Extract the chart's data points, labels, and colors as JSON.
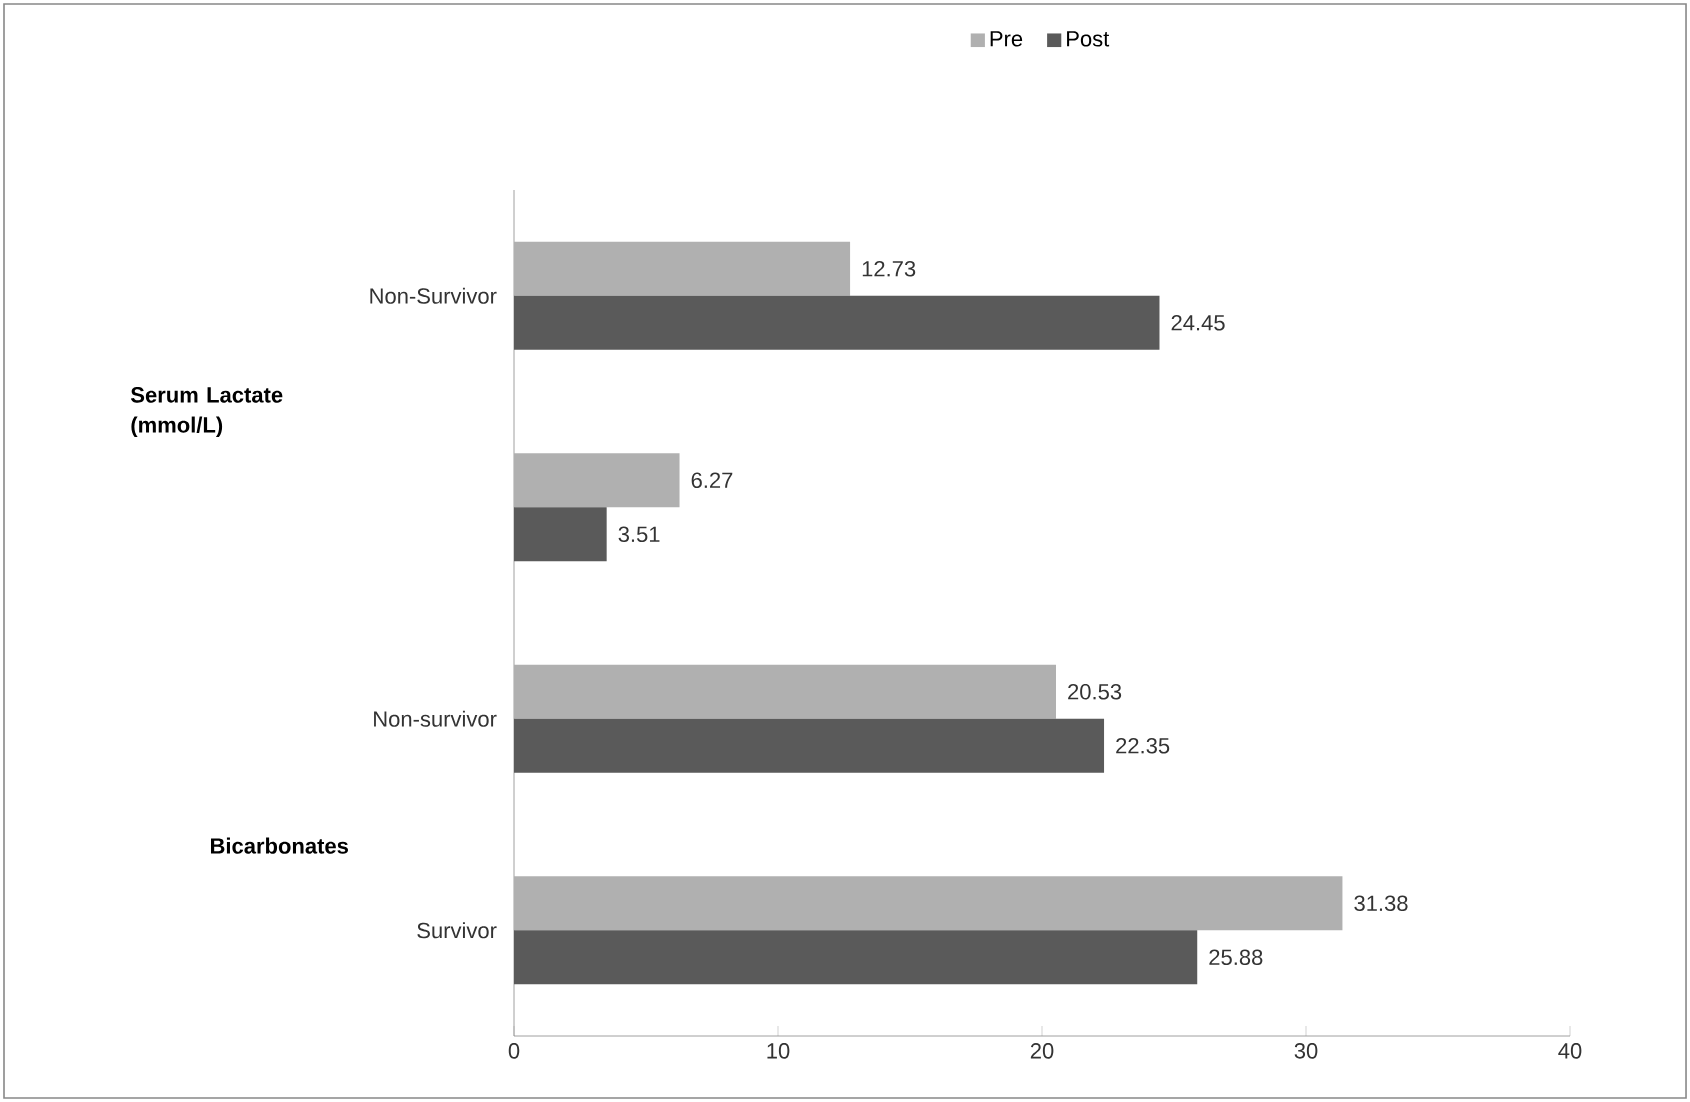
{
  "chart_data": {
    "type": "bar",
    "orientation": "horizontal",
    "categories": [
      "Non-Survivor",
      null,
      "Non-survivor",
      "Survivor"
    ],
    "series": [
      {
        "name": "Pre",
        "color": "#b0b0b0",
        "values": [
          12.73,
          6.27,
          20.53,
          31.38
        ]
      },
      {
        "name": "Post",
        "color": "#5a5a5a",
        "values": [
          24.45,
          3.51,
          22.35,
          25.88
        ]
      }
    ],
    "xlim": [
      0,
      40
    ],
    "xticks": [
      0,
      10,
      20,
      30,
      40
    ],
    "grid": false,
    "legend": "top",
    "data_labels": true,
    "annotations": [
      "Serum Lactate (mmol/L)",
      "Bicarbonates"
    ]
  }
}
